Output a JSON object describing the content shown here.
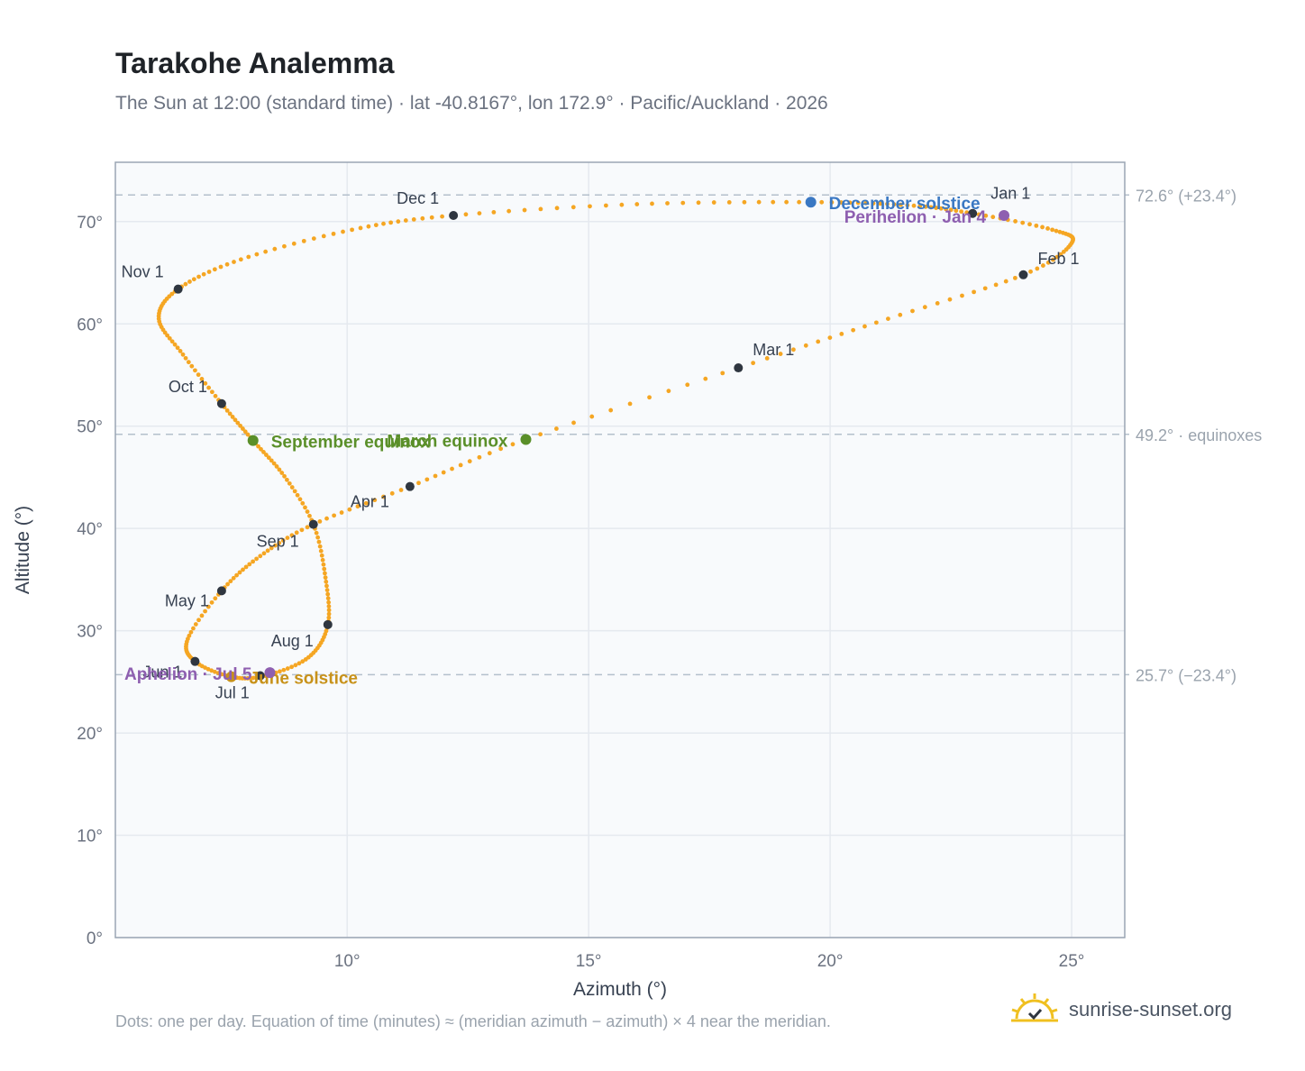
{
  "header": {
    "title": "Tarakohe Analemma",
    "subtitle": "The Sun at 12:00 (standard time) · lat -40.8167°, lon 172.9° · Pacific/Auckland · 2026"
  },
  "footer": {
    "note": "Dots: one per day. Equation of time (minutes) ≈ (meridian azimuth − azimuth) × 4 near the meridian.",
    "brand": "sunrise-sunset.org"
  },
  "colors": {
    "curve": "#f5a623",
    "month_dot": "#2f3640",
    "equinox": "#5a8f29",
    "december_solstice": "#3a78c3",
    "june_solstice": "#c8921a",
    "apsis": "#8e5fb0",
    "grid": "#e5e9ef",
    "frame": "#9aa5b4",
    "ref_line": "#b4c0cc",
    "plot_bg": "#f8fafc"
  },
  "icons": {
    "brand": "sun-checkmark-icon"
  },
  "chart_data": {
    "type": "scatter",
    "xlabel": "Azimuth (°)",
    "ylabel": "Altitude (°)",
    "xlim": [
      5.2,
      26.1
    ],
    "ylim": [
      0,
      75.8
    ],
    "x_ticks": [
      10,
      15,
      20,
      25
    ],
    "x_tick_labels": [
      "10°",
      "15°",
      "20°",
      "25°"
    ],
    "y_ticks": [
      0,
      10,
      20,
      30,
      40,
      50,
      60,
      70
    ],
    "y_tick_labels": [
      "0°",
      "10°",
      "20°",
      "30°",
      "40°",
      "50°",
      "60°",
      "70°"
    ],
    "grid": true,
    "reference_lines": [
      {
        "y": 72.6,
        "label": "72.6° (+23.4°)"
      },
      {
        "y": 49.2,
        "label": "49.2° · equinoxes"
      },
      {
        "y": 25.7,
        "label": "25.7° (−23.4°)"
      }
    ],
    "daily_points": [
      [
        22.95,
        70.8
      ],
      [
        24.6,
        69.2
      ],
      [
        25.0,
        67.9
      ],
      [
        24.0,
        64.8
      ],
      [
        21.2,
        60.5
      ],
      [
        18.1,
        55.7
      ],
      [
        13.7,
        48.7
      ],
      [
        11.3,
        44.1
      ],
      [
        9.3,
        40.4
      ],
      [
        8.2,
        37.3
      ],
      [
        7.4,
        33.9
      ],
      [
        6.7,
        29.2
      ],
      [
        6.85,
        27.0
      ],
      [
        7.6,
        25.5
      ],
      [
        8.3,
        25.6
      ],
      [
        9.2,
        27.4
      ],
      [
        9.6,
        30.6
      ],
      [
        9.55,
        35.2
      ],
      [
        9.3,
        40.4
      ],
      [
        8.7,
        45.1
      ],
      [
        8.05,
        48.6
      ],
      [
        7.4,
        52.2
      ],
      [
        6.6,
        57.0
      ],
      [
        6.1,
        60.5
      ],
      [
        6.5,
        63.4
      ],
      [
        7.8,
        66.3
      ],
      [
        10.1,
        69.2
      ],
      [
        12.2,
        70.6
      ],
      [
        16.0,
        71.7
      ],
      [
        19.6,
        71.9
      ],
      [
        21.6,
        71.6
      ],
      [
        22.95,
        70.8
      ]
    ],
    "month_markers": [
      {
        "label": "Jan 1",
        "x": 22.95,
        "y": 70.8
      },
      {
        "label": "Feb 1",
        "x": 24.0,
        "y": 64.8
      },
      {
        "label": "Mar 1",
        "x": 18.1,
        "y": 55.7
      },
      {
        "label": "Apr 1",
        "x": 11.3,
        "y": 44.1
      },
      {
        "label": "May 1",
        "x": 7.4,
        "y": 33.9
      },
      {
        "label": "Jun 1",
        "x": 6.85,
        "y": 27.0
      },
      {
        "label": "Jul 1",
        "x": 8.2,
        "y": 25.6
      },
      {
        "label": "Aug 1",
        "x": 9.6,
        "y": 30.6
      },
      {
        "label": "Sep 1",
        "x": 9.3,
        "y": 40.4
      },
      {
        "label": "Oct 1",
        "x": 7.4,
        "y": 52.2
      },
      {
        "label": "Nov 1",
        "x": 6.5,
        "y": 63.4
      },
      {
        "label": "Dec 1",
        "x": 12.2,
        "y": 70.6
      }
    ],
    "events": [
      {
        "label": "December solstice",
        "x": 19.6,
        "y": 71.9,
        "kind": "december_solstice"
      },
      {
        "label": "Perihelion · Jan 4",
        "x": 23.6,
        "y": 70.6,
        "kind": "apsis"
      },
      {
        "label": "March equinox",
        "x": 13.7,
        "y": 48.7,
        "kind": "equinox"
      },
      {
        "label": "September equinox",
        "x": 8.05,
        "y": 48.6,
        "kind": "equinox"
      },
      {
        "label": "June solstice",
        "x": 7.6,
        "y": 25.5,
        "kind": "june_solstice"
      },
      {
        "label": "Aphelion · Jul 5",
        "x": 8.4,
        "y": 25.9,
        "kind": "apsis"
      }
    ]
  }
}
